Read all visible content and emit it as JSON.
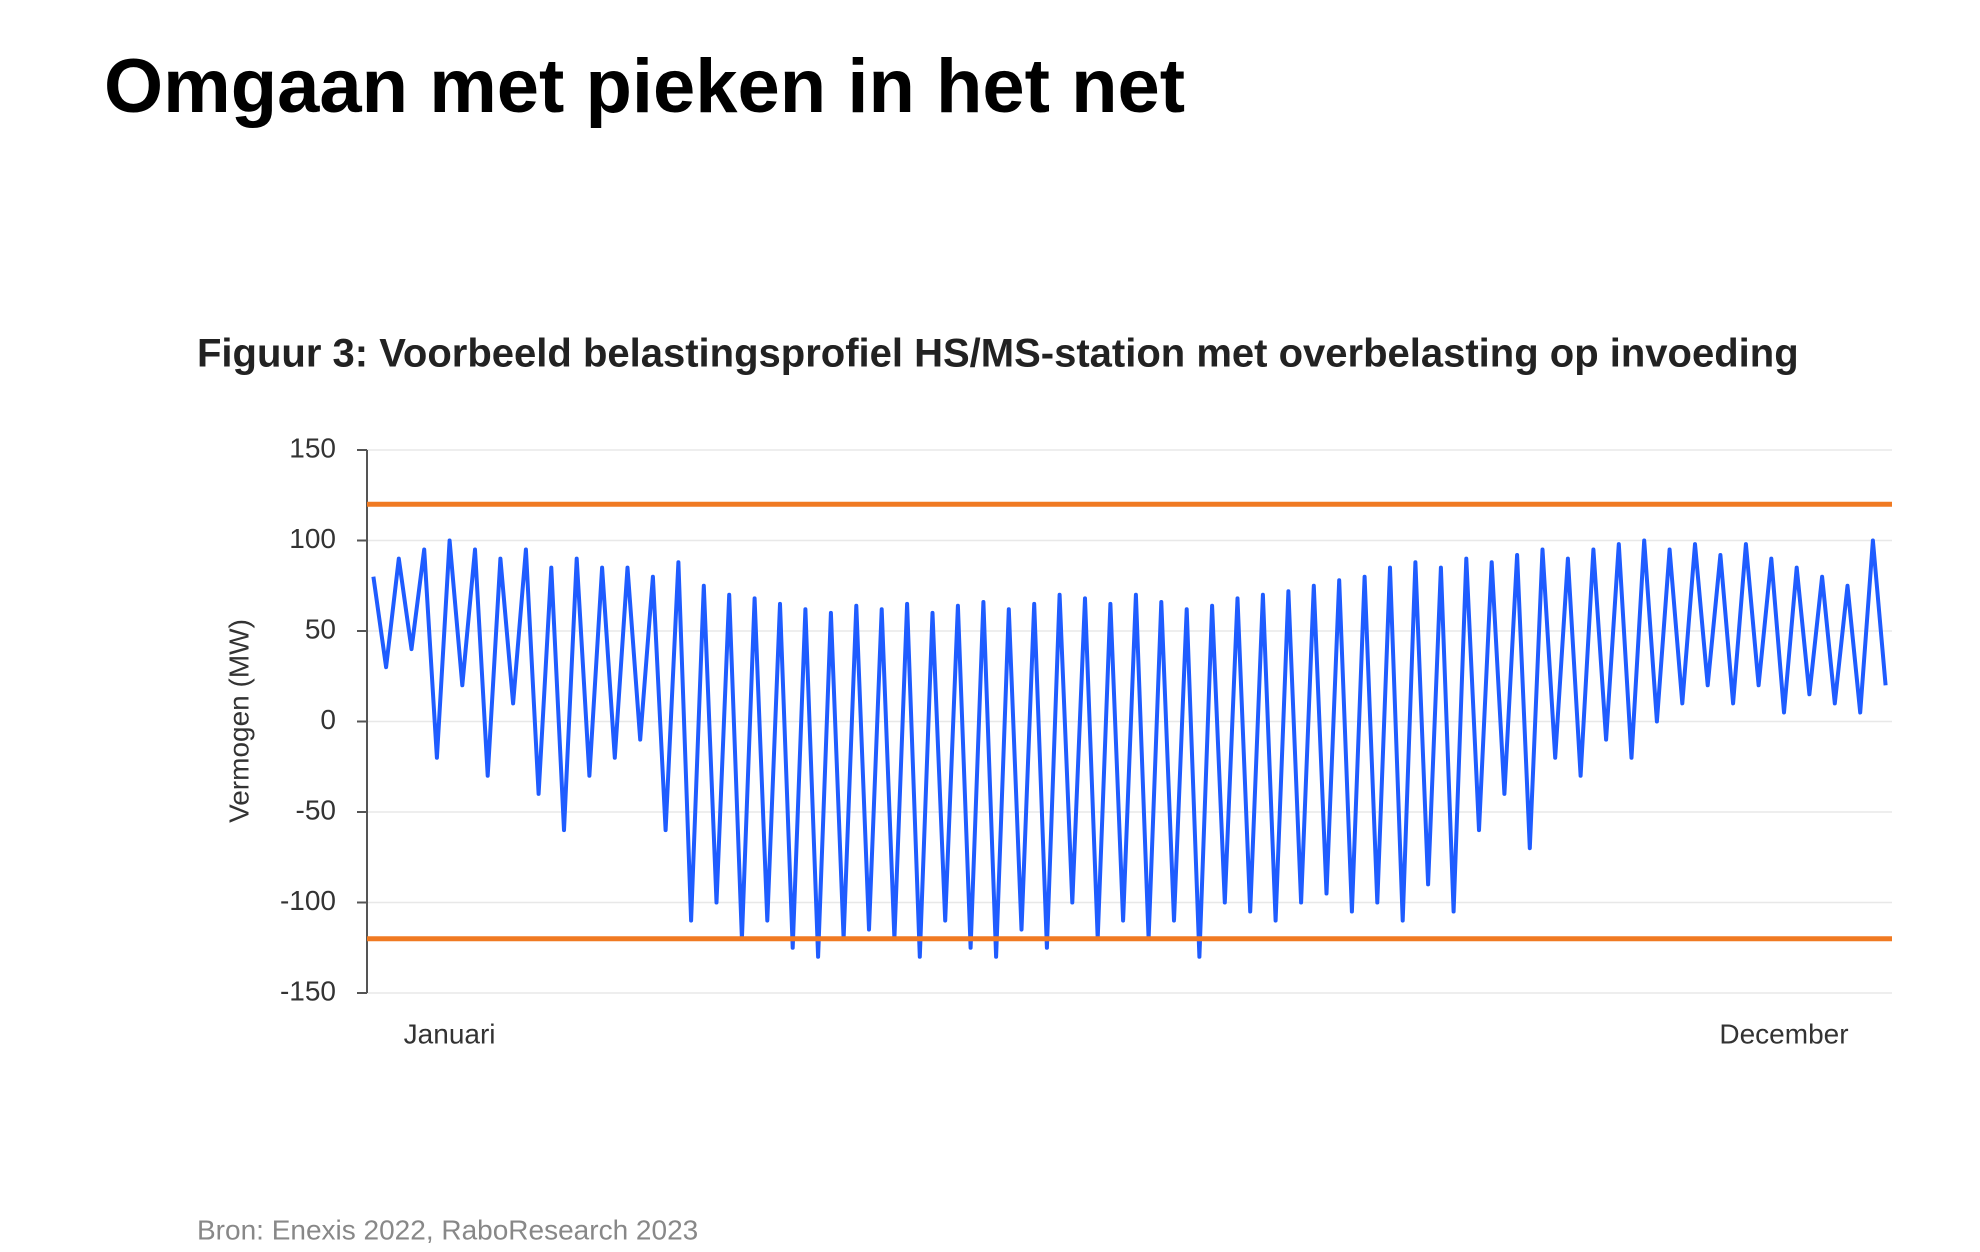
{
  "page_title": "Omgaan met pieken in het net",
  "chart_data": {
    "type": "line",
    "title": "Figuur 3: Voorbeeld belastingsprofiel HS/MS-station met overbelasting op invoeding",
    "y_label": "Vermogen (MW)",
    "source": "Bron: Enexis 2022, RaboResearch 2023",
    "categories": [
      null,
      null,
      null,
      null,
      null,
      null,
      "Januari",
      null,
      null,
      null,
      null,
      null,
      null,
      null,
      null,
      null,
      null,
      null,
      null,
      null,
      null,
      null,
      null,
      null,
      null,
      null,
      null,
      null,
      null,
      null,
      null,
      null,
      null,
      null,
      null,
      null,
      null,
      null,
      null,
      null,
      null,
      null,
      null,
      null,
      null,
      null,
      null,
      null,
      null,
      null,
      null,
      null,
      null,
      null,
      null,
      null,
      null,
      null,
      null,
      null,
      null,
      null,
      null,
      null,
      null,
      null,
      null,
      null,
      null,
      null,
      null,
      null,
      null,
      null,
      null,
      null,
      null,
      null,
      null,
      null,
      null,
      null,
      null,
      null,
      null,
      null,
      null,
      null,
      null,
      null,
      null,
      null,
      null,
      null,
      null,
      null,
      null,
      null,
      null,
      null,
      null,
      null,
      null,
      null,
      null,
      null,
      null,
      null,
      null,
      null,
      null,
      "December",
      null,
      null,
      null,
      null,
      null,
      null,
      null,
      null
    ],
    "series": [
      {
        "name": "Vermogen",
        "color": "#1f5cff",
        "values": [
          80,
          30,
          90,
          40,
          95,
          -20,
          100,
          20,
          95,
          -30,
          90,
          10,
          95,
          -40,
          85,
          -60,
          90,
          -30,
          85,
          -20,
          85,
          -10,
          80,
          -60,
          88,
          -110,
          75,
          -100,
          70,
          -120,
          68,
          -110,
          65,
          -125,
          62,
          -130,
          60,
          -120,
          64,
          -115,
          62,
          -120,
          65,
          -130,
          60,
          -110,
          64,
          -125,
          66,
          -130,
          62,
          -115,
          65,
          -125,
          70,
          -100,
          68,
          -120,
          65,
          -110,
          70,
          -120,
          66,
          -110,
          62,
          -130,
          64,
          -100,
          68,
          -105,
          70,
          -110,
          72,
          -100,
          75,
          -95,
          78,
          -105,
          80,
          -100,
          85,
          -110,
          88,
          -90,
          85,
          -105,
          90,
          -60,
          88,
          -40,
          92,
          -70,
          95,
          -20,
          90,
          -30,
          95,
          -10,
          98,
          -20,
          100,
          0,
          95,
          10,
          98,
          20,
          92,
          10,
          98,
          20,
          90,
          5,
          85,
          15,
          80,
          10,
          75,
          5,
          100,
          20
        ]
      }
    ],
    "reference_lines": [
      {
        "value": 120,
        "color": "#f07a22"
      },
      {
        "value": -120,
        "color": "#f07a22"
      }
    ],
    "ylim": [
      -150,
      150
    ],
    "yticks": [
      150,
      100,
      50,
      0,
      -50,
      -100,
      -150
    ],
    "grid": true
  }
}
